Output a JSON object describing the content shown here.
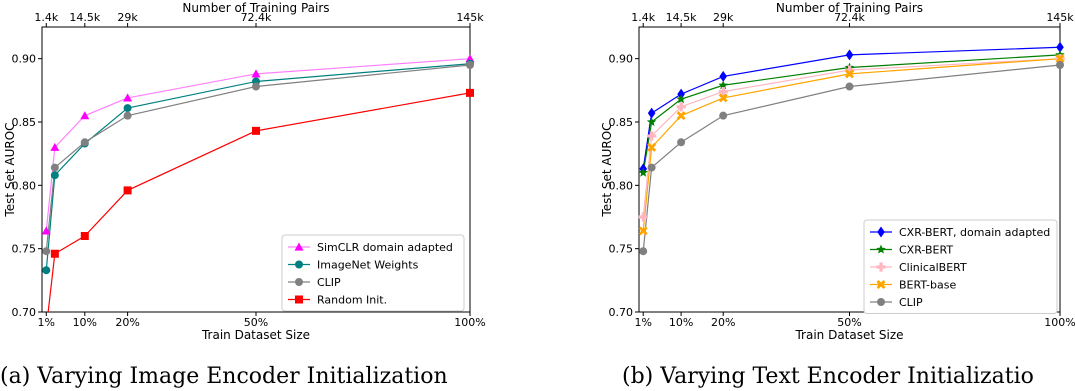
{
  "chart_data": [
    {
      "type": "line",
      "caption": "(a) Varying Image Encoder Initialization",
      "xlabel": "Train Dataset Size",
      "ylabel": "Test Set AUROC",
      "top_xlabel": "Number of Training Pairs",
      "x": [
        1,
        3,
        10,
        20,
        50,
        100
      ],
      "xlim": [
        0,
        100
      ],
      "ylim": [
        0.7,
        0.925
      ],
      "xticks": [
        {
          "value": 1,
          "label": "1%"
        },
        {
          "value": 10,
          "label": "10%"
        },
        {
          "value": 20,
          "label": "20%"
        },
        {
          "value": 50,
          "label": "50%"
        },
        {
          "value": 100,
          "label": "100%"
        }
      ],
      "top_xticks": [
        {
          "value": 1,
          "label": "1.4k"
        },
        {
          "value": 10,
          "label": "14.5k"
        },
        {
          "value": 20,
          "label": "29k"
        },
        {
          "value": 50,
          "label": "72.4k"
        },
        {
          "value": 100,
          "label": "145k"
        }
      ],
      "yticks": [
        {
          "value": 0.7,
          "label": "0.70"
        },
        {
          "value": 0.75,
          "label": "0.75"
        },
        {
          "value": 0.8,
          "label": "0.80"
        },
        {
          "value": 0.85,
          "label": "0.85"
        },
        {
          "value": 0.9,
          "label": "0.90"
        }
      ],
      "grid": false,
      "legend_position": "lower-right",
      "series": [
        {
          "name": "SimCLR domain adapted",
          "color": "#ff00ff",
          "line_color": "#ff80ff",
          "marker": "triangle",
          "values": [
            0.764,
            0.83,
            0.855,
            0.869,
            0.888,
            0.9
          ]
        },
        {
          "name": "ImageNet Weights",
          "color": "#008080",
          "line_color": "#008080",
          "marker": "circle",
          "values": [
            0.733,
            0.808,
            0.833,
            0.861,
            0.882,
            0.896
          ]
        },
        {
          "name": "CLIP",
          "color": "#808080",
          "line_color": "#808080",
          "marker": "circle",
          "values": [
            0.748,
            0.814,
            0.834,
            0.855,
            0.878,
            0.895
          ]
        },
        {
          "name": "Random Init.",
          "color": "#ff0000",
          "line_color": "#ff0000",
          "marker": "square",
          "values": [
            0.687,
            0.746,
            0.76,
            0.796,
            0.843,
            0.873
          ]
        }
      ]
    },
    {
      "type": "line",
      "caption": "(b) Varying Text Encoder Initializatio",
      "xlabel": "Train Dataset Size",
      "ylabel": "Test Set AUROC",
      "top_xlabel": "Number of Training Pairs",
      "x": [
        1,
        3,
        10,
        20,
        50,
        100
      ],
      "xlim": [
        0,
        100
      ],
      "ylim": [
        0.7,
        0.925
      ],
      "xticks": [
        {
          "value": 1,
          "label": "1%"
        },
        {
          "value": 10,
          "label": "10%"
        },
        {
          "value": 20,
          "label": "20%"
        },
        {
          "value": 50,
          "label": "50%"
        },
        {
          "value": 100,
          "label": "100%"
        }
      ],
      "top_xticks": [
        {
          "value": 1,
          "label": "1.4k"
        },
        {
          "value": 10,
          "label": "14.5k"
        },
        {
          "value": 20,
          "label": "29k"
        },
        {
          "value": 50,
          "label": "72.4k"
        },
        {
          "value": 100,
          "label": "145k"
        }
      ],
      "yticks": [
        {
          "value": 0.7,
          "label": "0.70"
        },
        {
          "value": 0.75,
          "label": "0.75"
        },
        {
          "value": 0.8,
          "label": "0.80"
        },
        {
          "value": 0.85,
          "label": "0.85"
        },
        {
          "value": 0.9,
          "label": "0.90"
        }
      ],
      "grid": false,
      "legend_position": "lower-right",
      "series": [
        {
          "name": "CXR-BERT, domain adapted",
          "color": "#0000ff",
          "line_color": "#0000ff",
          "marker": "diamond",
          "values": [
            0.813,
            0.857,
            0.872,
            0.886,
            0.903,
            0.909
          ]
        },
        {
          "name": "CXR-BERT",
          "color": "#007f00",
          "line_color": "#007f00",
          "marker": "star",
          "values": [
            0.81,
            0.85,
            0.868,
            0.879,
            0.893,
            0.903
          ]
        },
        {
          "name": "ClinicalBERT",
          "color": "#ffb6c1",
          "line_color": "#ffb6c1",
          "marker": "plus",
          "values": [
            0.775,
            0.839,
            0.862,
            0.874,
            0.891,
            0.9
          ]
        },
        {
          "name": "BERT-base",
          "color": "#ffa500",
          "line_color": "#ffa500",
          "marker": "x",
          "values": [
            0.764,
            0.83,
            0.855,
            0.869,
            0.888,
            0.9
          ]
        },
        {
          "name": "CLIP",
          "color": "#808080",
          "line_color": "#808080",
          "marker": "circle",
          "values": [
            0.748,
            0.814,
            0.834,
            0.855,
            0.878,
            0.895
          ]
        }
      ]
    }
  ]
}
